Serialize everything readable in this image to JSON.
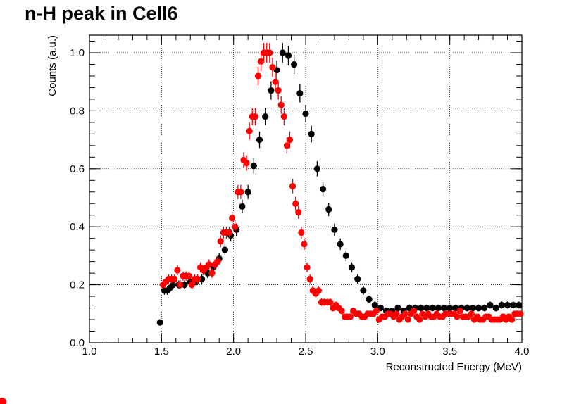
{
  "chart_data": {
    "type": "scatter",
    "title": "n-H peak in Cell6",
    "xlabel": "Reconstructed Energy (MeV)",
    "ylabel": "Counts (a.u.)",
    "xlim": [
      1.0,
      4.0
    ],
    "ylim": [
      0.0,
      1.05
    ],
    "x_ticks": [
      "1.0",
      "1.5",
      "2.0",
      "2.5",
      "3.0",
      "3.5",
      "4.0"
    ],
    "y_ticks": [
      "0.0",
      "0.2",
      "0.4",
      "0.6",
      "0.8",
      "1.0"
    ],
    "grid": true,
    "error_bars": true,
    "series": [
      {
        "color": "#000000",
        "x": [
          1.49,
          1.52,
          1.54,
          1.56,
          1.58,
          1.62,
          1.66,
          1.7,
          1.74,
          1.78,
          1.82,
          1.86,
          1.9,
          1.94,
          1.98,
          2.02,
          2.06,
          2.1,
          2.14,
          2.18,
          2.22,
          2.26,
          2.3,
          2.34,
          2.38,
          2.42,
          2.46,
          2.5,
          2.54,
          2.58,
          2.62,
          2.66,
          2.7,
          2.74,
          2.78,
          2.82,
          2.86,
          2.9,
          2.94,
          2.98,
          3.02,
          3.06,
          3.1,
          3.14,
          3.18,
          3.22,
          3.26,
          3.3,
          3.34,
          3.38,
          3.42,
          3.46,
          3.5,
          3.54,
          3.58,
          3.62,
          3.66,
          3.7,
          3.74,
          3.78,
          3.82,
          3.86,
          3.9,
          3.94,
          3.98
        ],
        "y": [
          0.07,
          0.18,
          0.18,
          0.19,
          0.2,
          0.2,
          0.2,
          0.21,
          0.21,
          0.22,
          0.24,
          0.26,
          0.29,
          0.32,
          0.37,
          0.39,
          0.47,
          0.52,
          0.61,
          0.7,
          0.78,
          0.87,
          0.94,
          1.0,
          0.99,
          0.96,
          0.86,
          0.79,
          0.72,
          0.6,
          0.53,
          0.46,
          0.39,
          0.34,
          0.3,
          0.26,
          0.22,
          0.18,
          0.15,
          0.13,
          0.12,
          0.11,
          0.11,
          0.12,
          0.11,
          0.12,
          0.12,
          0.12,
          0.12,
          0.12,
          0.12,
          0.12,
          0.12,
          0.12,
          0.12,
          0.12,
          0.12,
          0.12,
          0.12,
          0.13,
          0.12,
          0.13,
          0.13,
          0.13,
          0.13
        ]
      },
      {
        "color": "#ff0000",
        "x": [
          1.51,
          1.53,
          1.55,
          1.57,
          1.59,
          1.61,
          1.63,
          1.65,
          1.67,
          1.69,
          1.71,
          1.73,
          1.75,
          1.77,
          1.79,
          1.81,
          1.83,
          1.85,
          1.87,
          1.89,
          1.91,
          1.93,
          1.95,
          1.97,
          1.99,
          2.01,
          2.03,
          2.05,
          2.07,
          2.09,
          2.11,
          2.13,
          2.15,
          2.17,
          2.19,
          2.21,
          2.23,
          2.25,
          2.27,
          2.29,
          2.31,
          2.33,
          2.35,
          2.37,
          2.39,
          2.41,
          2.43,
          2.45,
          2.47,
          2.49,
          2.51,
          2.53,
          2.55,
          2.57,
          2.59,
          2.61,
          2.63,
          2.65,
          2.67,
          2.69,
          2.71,
          2.73,
          2.75,
          2.77,
          2.79,
          2.81,
          2.83,
          2.85,
          2.87,
          2.89,
          2.91,
          2.93,
          2.95,
          2.97,
          2.99,
          3.01,
          3.03,
          3.05,
          3.07,
          3.09,
          3.11,
          3.13,
          3.15,
          3.17,
          3.19,
          3.21,
          3.23,
          3.25,
          3.27,
          3.29,
          3.31,
          3.33,
          3.35,
          3.37,
          3.39,
          3.41,
          3.43,
          3.45,
          3.47,
          3.49,
          3.51,
          3.53,
          3.55,
          3.57,
          3.59,
          3.61,
          3.63,
          3.65,
          3.67,
          3.69,
          3.71,
          3.73,
          3.75,
          3.77,
          3.79,
          3.81,
          3.83,
          3.85,
          3.87,
          3.89,
          3.91,
          3.93,
          3.95,
          3.97,
          3.99
        ],
        "y": [
          0.2,
          0.21,
          0.22,
          0.22,
          0.22,
          0.25,
          0.2,
          0.23,
          0.23,
          0.23,
          0.2,
          0.22,
          0.22,
          0.26,
          0.25,
          0.26,
          0.27,
          0.24,
          0.27,
          0.28,
          0.35,
          0.38,
          0.38,
          0.38,
          0.43,
          0.4,
          0.52,
          0.52,
          0.63,
          0.62,
          0.73,
          0.78,
          0.78,
          0.92,
          0.97,
          1.0,
          1.0,
          1.0,
          0.95,
          0.9,
          0.87,
          0.82,
          0.78,
          0.68,
          0.7,
          0.54,
          0.48,
          0.45,
          0.38,
          0.34,
          0.26,
          0.22,
          0.18,
          0.17,
          0.18,
          0.14,
          0.14,
          0.14,
          0.14,
          0.12,
          0.13,
          0.12,
          0.11,
          0.09,
          0.09,
          0.09,
          0.11,
          0.1,
          0.1,
          0.09,
          0.09,
          0.1,
          0.1,
          0.1,
          0.11,
          0.08,
          0.09,
          0.09,
          0.1,
          0.1,
          0.09,
          0.1,
          0.08,
          0.09,
          0.1,
          0.08,
          0.1,
          0.11,
          0.09,
          0.08,
          0.1,
          0.09,
          0.1,
          0.09,
          0.09,
          0.1,
          0.09,
          0.09,
          0.1,
          0.1,
          0.1,
          0.1,
          0.09,
          0.11,
          0.09,
          0.09,
          0.09,
          0.1,
          0.08,
          0.09,
          0.08,
          0.08,
          0.09,
          0.09,
          0.08,
          0.08,
          0.08,
          0.08,
          0.09,
          0.08,
          0.09,
          0.08,
          0.1,
          0.1,
          0.1
        ]
      }
    ]
  },
  "annotation_color": "#ff0000"
}
